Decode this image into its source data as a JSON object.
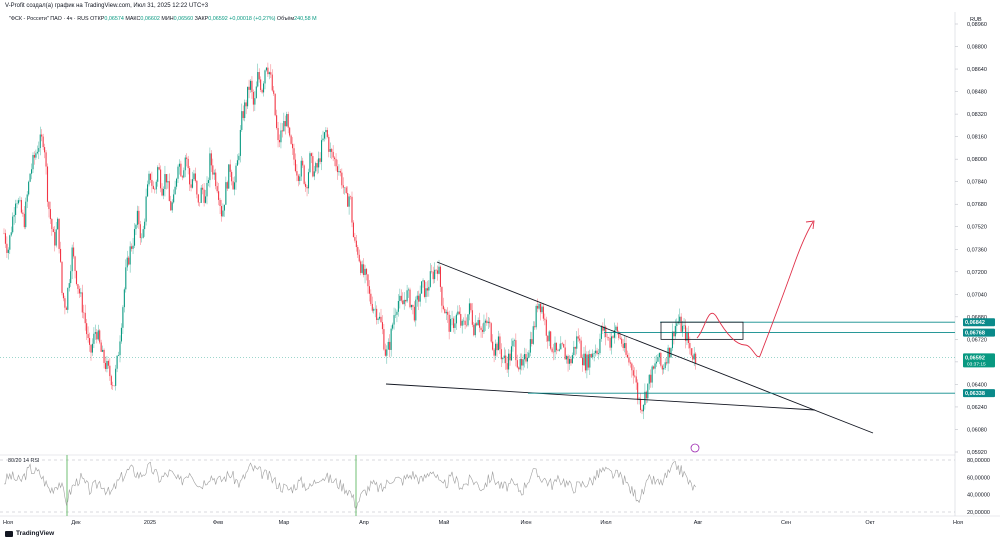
{
  "caption": "V-Profit создал(а) график на TradingView.com, Июл 31, 2025 12:22 UTC+3",
  "legend": {
    "symbol": "\"ФСК - Россети\" ПАО · 4ч · RUS",
    "open_label": "ОТКР",
    "open": "0,06574",
    "high_label": "МАКС",
    "high": "0,06602",
    "low_label": "МИН",
    "low": "0,06560",
    "close_label": "ЗАКР",
    "close": "0,06592",
    "change": "+0,00018 (+0,27%)",
    "volume_label": "Объём",
    "volume": "240,58 M"
  },
  "currency": "RUB",
  "rsi_label": "80/20 14 RSI",
  "brand": "TradingView",
  "colors": {
    "up": "#089981",
    "down": "#f23645",
    "teal_level": "#0a8a8a",
    "projection": "#e0314a",
    "rsi": "#9e9e9e",
    "rsi_marker": "#4caf50"
  },
  "chart_data": {
    "type": "candlestick",
    "price_axis": {
      "ticks": [
        "0,08960",
        "0,08800",
        "0,08640",
        "0,08480",
        "0,08320",
        "0,08160",
        "0,08000",
        "0,07840",
        "0,07680",
        "0,07520",
        "0,07360",
        "0,07200",
        "0,07040",
        "0,06880",
        "0,06720",
        "0,06560",
        "0,06400",
        "0,06240",
        "0,06080",
        "0,05920"
      ],
      "range": [
        0.0592,
        0.0896
      ]
    },
    "time_axis": {
      "ticks": [
        "Ноя",
        "Дек",
        "2025",
        "Фев",
        "Мар",
        "Апр",
        "Май",
        "Июн",
        "Июл",
        "Авг",
        "Сен",
        "Окт",
        "Ноя"
      ]
    },
    "price_labels": [
      {
        "text": "0,06842",
        "value": 0.06842
      },
      {
        "text": "0,06768",
        "value": 0.06768
      },
      {
        "text": "0,06592",
        "value": 0.06592,
        "sub": "03:37:15"
      },
      {
        "text": "0,06338",
        "value": 0.06338
      }
    ],
    "levels": [
      0.06842,
      0.06768,
      0.06338
    ],
    "rsi_axis": {
      "ticks": [
        "80,00000",
        "60,00000",
        "40,00000",
        "20,00000"
      ],
      "range": [
        20,
        80
      ]
    },
    "series_shape": [
      [
        0,
        0.076
      ],
      [
        8,
        0.0735
      ],
      [
        16,
        0.0775
      ],
      [
        24,
        0.0755
      ],
      [
        30,
        0.079
      ],
      [
        38,
        0.081
      ],
      [
        44,
        0.0815
      ],
      [
        48,
        0.077
      ],
      [
        54,
        0.074
      ],
      [
        58,
        0.0755
      ],
      [
        62,
        0.0705
      ],
      [
        66,
        0.0695
      ],
      [
        72,
        0.0735
      ],
      [
        78,
        0.071
      ],
      [
        84,
        0.069
      ],
      [
        90,
        0.066
      ],
      [
        96,
        0.068
      ],
      [
        102,
        0.066
      ],
      [
        108,
        0.065
      ],
      [
        114,
        0.064
      ],
      [
        118,
        0.066
      ],
      [
        122,
        0.069
      ],
      [
        126,
        0.072
      ],
      [
        130,
        0.0735
      ],
      [
        134,
        0.0745
      ],
      [
        138,
        0.076
      ],
      [
        142,
        0.074
      ],
      [
        146,
        0.077
      ],
      [
        150,
        0.079
      ],
      [
        154,
        0.0775
      ],
      [
        158,
        0.0795
      ],
      [
        162,
        0.078
      ],
      [
        166,
        0.079
      ],
      [
        170,
        0.0765
      ],
      [
        174,
        0.077
      ],
      [
        178,
        0.08
      ],
      [
        182,
        0.079
      ],
      [
        186,
        0.0805
      ],
      [
        190,
        0.078
      ],
      [
        194,
        0.079
      ],
      [
        198,
        0.0765
      ],
      [
        202,
        0.078
      ],
      [
        206,
        0.077
      ],
      [
        210,
        0.08
      ],
      [
        214,
        0.079
      ],
      [
        218,
        0.078
      ],
      [
        222,
        0.076
      ],
      [
        226,
        0.078
      ],
      [
        230,
        0.0795
      ],
      [
        234,
        0.078
      ],
      [
        238,
        0.08
      ],
      [
        242,
        0.083
      ],
      [
        246,
        0.084
      ],
      [
        250,
        0.0855
      ],
      [
        254,
        0.0835
      ],
      [
        258,
        0.086
      ],
      [
        262,
        0.085
      ],
      [
        266,
        0.087
      ],
      [
        270,
        0.086
      ],
      [
        274,
        0.084
      ],
      [
        278,
        0.081
      ],
      [
        282,
        0.082
      ],
      [
        286,
        0.083
      ],
      [
        290,
        0.081
      ],
      [
        294,
        0.08
      ],
      [
        298,
        0.079
      ],
      [
        302,
        0.0795
      ],
      [
        306,
        0.078
      ],
      [
        310,
        0.08
      ],
      [
        314,
        0.079
      ],
      [
        318,
        0.0795
      ],
      [
        322,
        0.081
      ],
      [
        326,
        0.082
      ],
      [
        330,
        0.0805
      ],
      [
        334,
        0.08
      ],
      [
        338,
        0.0795
      ],
      [
        342,
        0.0785
      ],
      [
        346,
        0.077
      ],
      [
        350,
        0.0775
      ],
      [
        354,
        0.074
      ],
      [
        358,
        0.0735
      ],
      [
        362,
        0.072
      ],
      [
        366,
        0.0715
      ],
      [
        370,
        0.07
      ],
      [
        374,
        0.0695
      ],
      [
        378,
        0.069
      ],
      [
        382,
        0.068
      ],
      [
        386,
        0.066
      ],
      [
        390,
        0.067
      ],
      [
        394,
        0.069
      ],
      [
        398,
        0.07
      ],
      [
        402,
        0.0695
      ],
      [
        406,
        0.0705
      ],
      [
        410,
        0.07
      ],
      [
        414,
        0.069
      ],
      [
        418,
        0.07
      ],
      [
        422,
        0.071
      ],
      [
        426,
        0.0705
      ],
      [
        430,
        0.0715
      ],
      [
        434,
        0.072
      ],
      [
        438,
        0.0725
      ],
      [
        442,
        0.07
      ],
      [
        446,
        0.069
      ],
      [
        450,
        0.068
      ],
      [
        454,
        0.0685
      ],
      [
        458,
        0.069
      ],
      [
        462,
        0.068
      ],
      [
        466,
        0.0685
      ],
      [
        470,
        0.0695
      ],
      [
        474,
        0.068
      ],
      [
        478,
        0.069
      ],
      [
        482,
        0.0675
      ],
      [
        486,
        0.0685
      ],
      [
        490,
        0.068
      ],
      [
        494,
        0.0665
      ],
      [
        498,
        0.067
      ],
      [
        502,
        0.066
      ],
      [
        506,
        0.0655
      ],
      [
        510,
        0.066
      ],
      [
        514,
        0.067
      ],
      [
        518,
        0.0655
      ],
      [
        522,
        0.065
      ],
      [
        526,
        0.066
      ],
      [
        530,
        0.067
      ],
      [
        534,
        0.068
      ],
      [
        538,
        0.07
      ],
      [
        542,
        0.0695
      ],
      [
        546,
        0.068
      ],
      [
        550,
        0.067
      ],
      [
        554,
        0.0665
      ],
      [
        558,
        0.066
      ],
      [
        562,
        0.0665
      ],
      [
        566,
        0.066
      ],
      [
        570,
        0.0655
      ],
      [
        574,
        0.0665
      ],
      [
        578,
        0.0675
      ],
      [
        582,
        0.066
      ],
      [
        586,
        0.0655
      ],
      [
        590,
        0.066
      ],
      [
        594,
        0.0665
      ],
      [
        598,
        0.0665
      ],
      [
        602,
        0.068
      ],
      [
        606,
        0.0675
      ],
      [
        610,
        0.067
      ],
      [
        614,
        0.068
      ],
      [
        618,
        0.0675
      ],
      [
        622,
        0.067
      ],
      [
        626,
        0.066
      ],
      [
        630,
        0.0655
      ],
      [
        634,
        0.065
      ],
      [
        638,
        0.063
      ],
      [
        642,
        0.0625
      ],
      [
        646,
        0.0635
      ],
      [
        650,
        0.0645
      ],
      [
        654,
        0.065
      ],
      [
        658,
        0.066
      ],
      [
        662,
        0.065
      ],
      [
        666,
        0.066
      ],
      [
        670,
        0.0665
      ],
      [
        674,
        0.068
      ],
      [
        678,
        0.0685
      ],
      [
        682,
        0.068
      ],
      [
        686,
        0.0675
      ],
      [
        690,
        0.0665
      ],
      [
        694,
        0.066
      ],
      [
        697,
        0.0659
      ]
    ],
    "rsi_shape": [
      [
        0,
        50
      ],
      [
        10,
        62
      ],
      [
        20,
        55
      ],
      [
        30,
        70
      ],
      [
        40,
        64
      ],
      [
        50,
        45
      ],
      [
        60,
        55
      ],
      [
        66,
        32
      ],
      [
        72,
        48
      ],
      [
        80,
        60
      ],
      [
        90,
        45
      ],
      [
        100,
        55
      ],
      [
        110,
        40
      ],
      [
        120,
        58
      ],
      [
        130,
        70
      ],
      [
        140,
        62
      ],
      [
        150,
        72
      ],
      [
        160,
        58
      ],
      [
        170,
        66
      ],
      [
        180,
        54
      ],
      [
        190,
        68
      ],
      [
        200,
        50
      ],
      [
        210,
        62
      ],
      [
        220,
        56
      ],
      [
        230,
        64
      ],
      [
        240,
        52
      ],
      [
        250,
        72
      ],
      [
        260,
        66
      ],
      [
        270,
        60
      ],
      [
        280,
        50
      ],
      [
        290,
        46
      ],
      [
        300,
        55
      ],
      [
        310,
        48
      ],
      [
        320,
        62
      ],
      [
        330,
        58
      ],
      [
        340,
        52
      ],
      [
        350,
        44
      ],
      [
        356,
        28
      ],
      [
        362,
        40
      ],
      [
        372,
        52
      ],
      [
        382,
        46
      ],
      [
        392,
        60
      ],
      [
        402,
        56
      ],
      [
        412,
        64
      ],
      [
        422,
        56
      ],
      [
        432,
        70
      ],
      [
        442,
        48
      ],
      [
        452,
        60
      ],
      [
        462,
        50
      ],
      [
        472,
        58
      ],
      [
        482,
        48
      ],
      [
        492,
        62
      ],
      [
        502,
        48
      ],
      [
        512,
        52
      ],
      [
        522,
        44
      ],
      [
        532,
        66
      ],
      [
        542,
        60
      ],
      [
        552,
        52
      ],
      [
        562,
        58
      ],
      [
        572,
        48
      ],
      [
        582,
        52
      ],
      [
        592,
        56
      ],
      [
        602,
        68
      ],
      [
        612,
        64
      ],
      [
        622,
        60
      ],
      [
        632,
        44
      ],
      [
        640,
        36
      ],
      [
        650,
        58
      ],
      [
        660,
        52
      ],
      [
        670,
        66
      ],
      [
        676,
        74
      ],
      [
        684,
        64
      ],
      [
        690,
        52
      ],
      [
        697,
        45
      ]
    ]
  }
}
